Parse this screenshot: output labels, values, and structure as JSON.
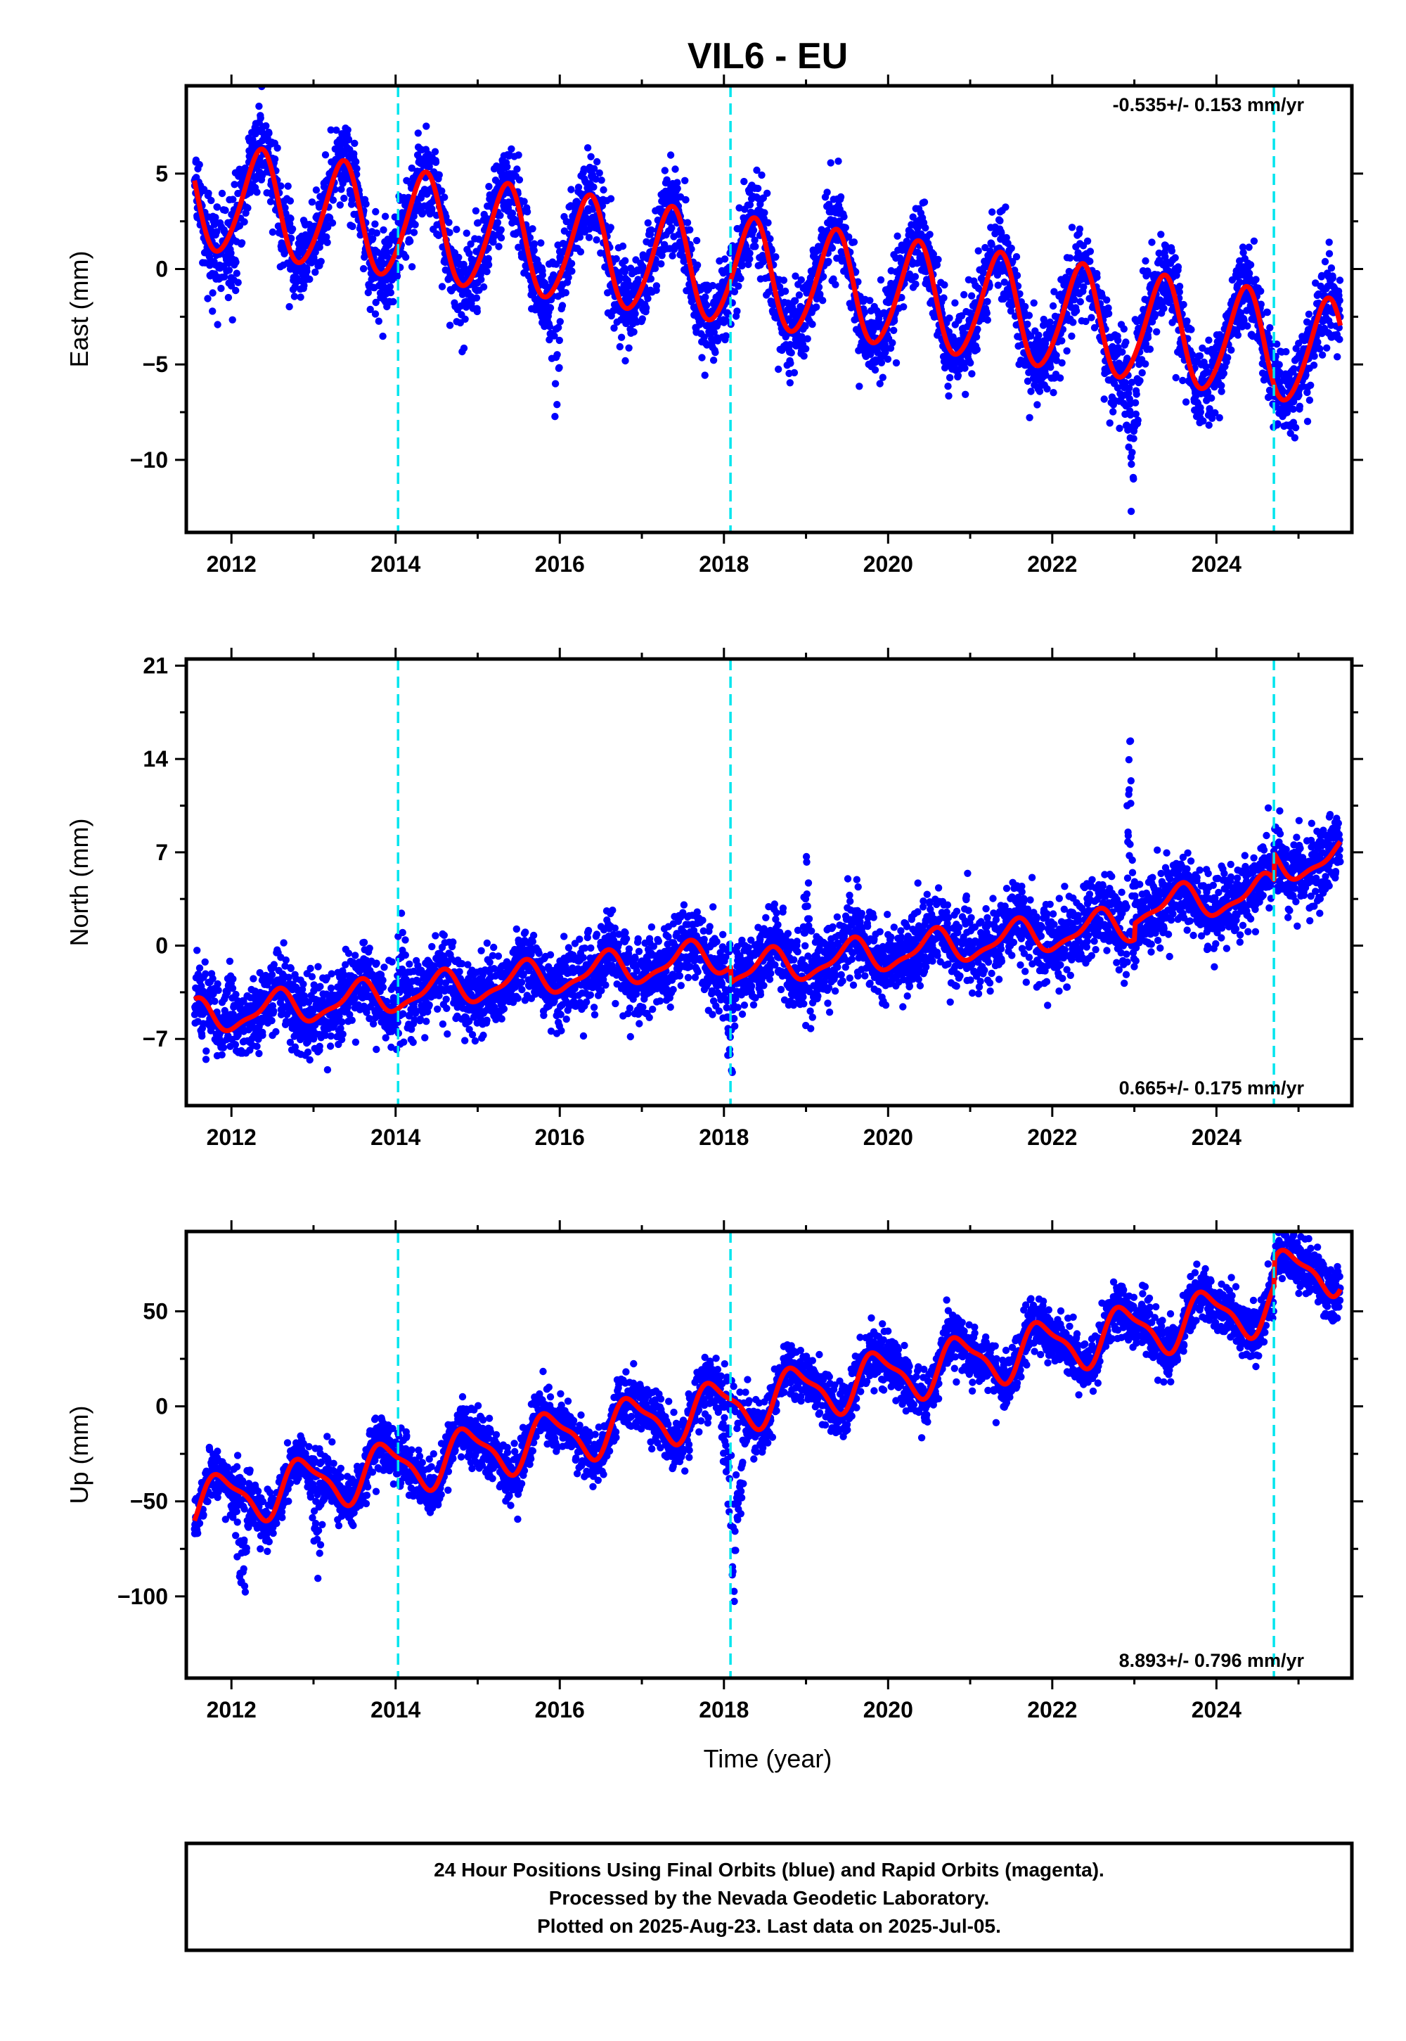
{
  "title": "VIL6 - EU",
  "xlabel": "Time (year)",
  "colors": {
    "final_orbits": "#0000ff",
    "model": "#ff0000",
    "equipment_change": "#00e5ee"
  },
  "footer": {
    "line1": "24 Hour Positions Using Final Orbits (blue) and Rapid Orbits (magenta).",
    "line2": "Processed by the Nevada Geodetic Laboratory.",
    "line3": "Plotted on 2025-Aug-23. Last data on 2025-Jul-05."
  },
  "chart_data": [
    {
      "type": "scatter",
      "component": "east",
      "ylabel": "East (mm)",
      "rate": "-0.535+/- 0.153 mm/yr",
      "xlim": [
        2011.45,
        2025.65
      ],
      "ylim": [
        -13.8,
        9.6
      ],
      "xticks": [
        2012,
        2014,
        2016,
        2018,
        2020,
        2022,
        2024
      ],
      "yticks": [
        -10,
        -5,
        0,
        5
      ],
      "vlines": [
        2014.03,
        2018.08,
        2024.7
      ],
      "data_range": [
        2011.55,
        2025.51
      ],
      "model": {
        "offset": 3.8,
        "trend": -0.6,
        "amp1": 2.8,
        "phase1": 0.1,
        "amp2": 0.3,
        "phase2": 0.3,
        "noise": 1.1,
        "steps": [
          [
            2024.7,
            0.0
          ]
        ],
        "spikes": [
          [
            2011.9,
            2012.15,
            -3.0
          ],
          [
            2015.85,
            2016.05,
            -6.5
          ],
          [
            2022.85,
            2023.1,
            -5.5
          ]
        ]
      }
    },
    {
      "type": "scatter",
      "component": "north",
      "ylabel": "North (mm)",
      "rate": "0.665+/- 0.175 mm/yr",
      "xlim": [
        2011.45,
        2025.65
      ],
      "ylim": [
        -12,
        21.5
      ],
      "xticks": [
        2012,
        2014,
        2016,
        2018,
        2020,
        2022,
        2024
      ],
      "yticks": [
        -7,
        0,
        7,
        14,
        21
      ],
      "vlines": [
        2014.03,
        2018.08,
        2024.7
      ],
      "data_range": [
        2011.55,
        2025.51
      ],
      "model": {
        "offset": -5.5,
        "trend": 0.72,
        "amp1": 1.2,
        "phase1": 0.3,
        "amp2": 0.4,
        "phase2": 0.5,
        "noise": 1.4,
        "steps": [
          [
            2018.08,
            -1.2
          ],
          [
            2023.0,
            1.2
          ],
          [
            2024.7,
            2.0
          ]
        ],
        "spikes": [
          [
            2011.9,
            2012.05,
            5.0
          ],
          [
            2014.0,
            2014.15,
            5.5
          ],
          [
            2018.0,
            2018.15,
            -7.0
          ],
          [
            2018.95,
            2019.05,
            11.0
          ],
          [
            2020.9,
            2021.05,
            5.5
          ],
          [
            2022.88,
            2023.02,
            12.0
          ]
        ]
      }
    },
    {
      "type": "scatter",
      "component": "up",
      "ylabel": "Up (mm)",
      "rate": "8.893+/- 0.796 mm/yr",
      "xlim": [
        2011.45,
        2025.65
      ],
      "ylim": [
        -143,
        92
      ],
      "xticks": [
        2012,
        2014,
        2016,
        2018,
        2020,
        2022,
        2024
      ],
      "yticks": [
        -100,
        -50,
        0,
        50
      ],
      "vlines": [
        2014.03,
        2018.08,
        2024.7
      ],
      "data_range": [
        2011.55,
        2025.51
      ],
      "model": {
        "offset": -52,
        "trend": 8.0,
        "amp1": 13,
        "phase1": 0.63,
        "amp2": 4,
        "phase2": 0.1,
        "noise": 7,
        "steps": [
          [
            2024.7,
            14.0
          ]
        ],
        "spikes": [
          [
            2012.0,
            2012.25,
            -55
          ],
          [
            2012.95,
            2013.15,
            -45
          ],
          [
            2017.95,
            2018.3,
            -90
          ]
        ]
      }
    }
  ]
}
